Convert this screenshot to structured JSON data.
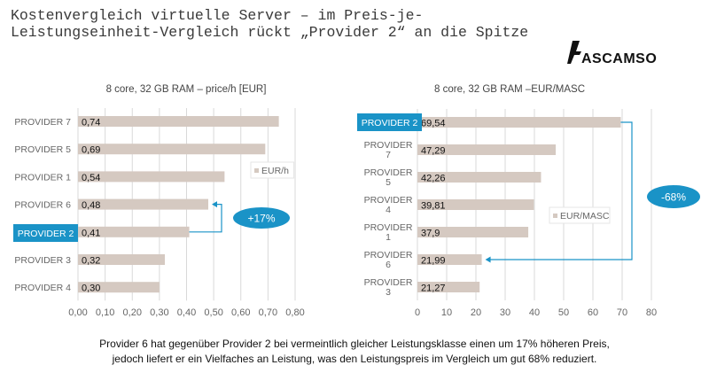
{
  "title": "Kostenvergleich virtuelle Server – im Preis-je-Leistungseinheit-Vergleich rückt „Provider 2“ an die Spitze",
  "logo": {
    "text": "ASCAMSO"
  },
  "footer": {
    "line1": "Provider 6 hat gegenüber Provider 2 bei vermeintlich gleicher Leistungsklasse einen um 17% höheren Preis,",
    "line2": "jedoch liefert er ein Vielfaches an Leistung, was den Leistungspreis im Vergleich um gut 68% reduziert."
  },
  "colors": {
    "bar": "#d5c9c1",
    "highlight": "#1a93c7",
    "grid": "#d9d9d9",
    "axis_text": "#666666"
  },
  "chart_data": [
    {
      "type": "bar",
      "orientation": "horizontal",
      "title": "8 core, 32 GB RAM – price/h [EUR]",
      "categories": [
        "PROVIDER 7",
        "PROVIDER 5",
        "PROVIDER 1",
        "PROVIDER 6",
        "PROVIDER 2",
        "PROVIDER 3",
        "PROVIDER 4"
      ],
      "values": [
        0.74,
        0.69,
        0.54,
        0.48,
        0.41,
        0.32,
        0.3
      ],
      "data_labels": [
        "0,74",
        "0,69",
        "0,54",
        "0,48",
        "0,41",
        "0,32",
        "0,30"
      ],
      "highlight_category": "PROVIDER 2",
      "legend": {
        "label": "EUR/h",
        "placement": "right"
      },
      "xlim": [
        0,
        0.8
      ],
      "xticks": [
        "0,00",
        "0,10",
        "0,20",
        "0,30",
        "0,40",
        "0,50",
        "0,60",
        "0,70",
        "0,80"
      ],
      "grid": true,
      "annotation": {
        "text": "+17%",
        "from": "PROVIDER 2",
        "to": "PROVIDER 6"
      }
    },
    {
      "type": "bar",
      "orientation": "horizontal",
      "title": "8 core, 32 GB RAM –EUR/MASC",
      "categories": [
        "PROVIDER 2",
        "PROVIDER 7",
        "PROVIDER 5",
        "PROVIDER 4",
        "PROVIDER 1",
        "PROVIDER 6",
        "PROVIDER 3"
      ],
      "values": [
        69.54,
        47.29,
        42.26,
        39.81,
        37.9,
        21.99,
        21.27
      ],
      "data_labels": [
        "69,54",
        "47,29",
        "42,26",
        "39,81",
        "37,9",
        "21,99",
        "21,27"
      ],
      "highlight_category": "PROVIDER 2",
      "legend": {
        "label": "EUR/MASC",
        "placement": "right"
      },
      "xlim": [
        0,
        80
      ],
      "xticks": [
        "0",
        "10",
        "20",
        "30",
        "40",
        "50",
        "60",
        "70",
        "80"
      ],
      "grid": true,
      "annotation": {
        "text": "-68%",
        "from": "PROVIDER 2",
        "to": "PROVIDER 6"
      }
    }
  ]
}
